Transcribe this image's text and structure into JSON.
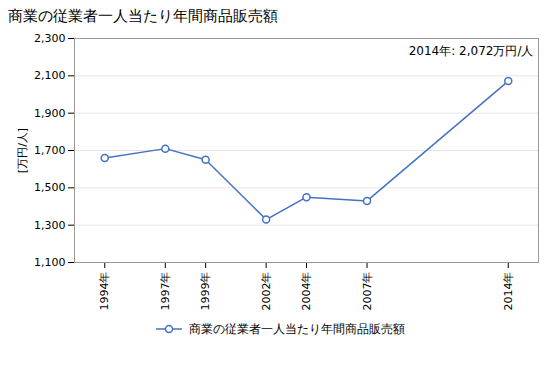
{
  "chart_data": {
    "type": "line",
    "title": "商業の従業者一人当たり年間商品販売額",
    "ylabel": "[万円/人]",
    "x": [
      1994,
      1997,
      1999,
      2002,
      2004,
      2007,
      2014
    ],
    "series": [
      {
        "name": "商業の従業者一人当たり年間商品販売額",
        "color": "#4472C4",
        "marker": "circle",
        "values": [
          1660,
          1710,
          1650,
          1330,
          1450,
          1430,
          2072
        ]
      }
    ],
    "xlim": [
      1992.5,
      2015.5
    ],
    "xticks": [
      {
        "value": 1994,
        "label": "1994年"
      },
      {
        "value": 1997,
        "label": "1997年"
      },
      {
        "value": 1999,
        "label": "1999年"
      },
      {
        "value": 2002,
        "label": "2002年"
      },
      {
        "value": 2004,
        "label": "2004年"
      },
      {
        "value": 2007,
        "label": "2007年"
      },
      {
        "value": 2014,
        "label": "2014年"
      }
    ],
    "ylim": [
      1100,
      2300
    ],
    "yticks": [
      {
        "value": 1100,
        "label": "1,100"
      },
      {
        "value": 1300,
        "label": "1,300"
      },
      {
        "value": 1500,
        "label": "1,500"
      },
      {
        "value": 1700,
        "label": "1,700"
      },
      {
        "value": 1900,
        "label": "1,900"
      },
      {
        "value": 2100,
        "label": "2,100"
      },
      {
        "value": 2300,
        "label": "2,300"
      }
    ],
    "annotation": "2014年: 2,072万円/人",
    "grid": true,
    "legend": "bottom"
  }
}
